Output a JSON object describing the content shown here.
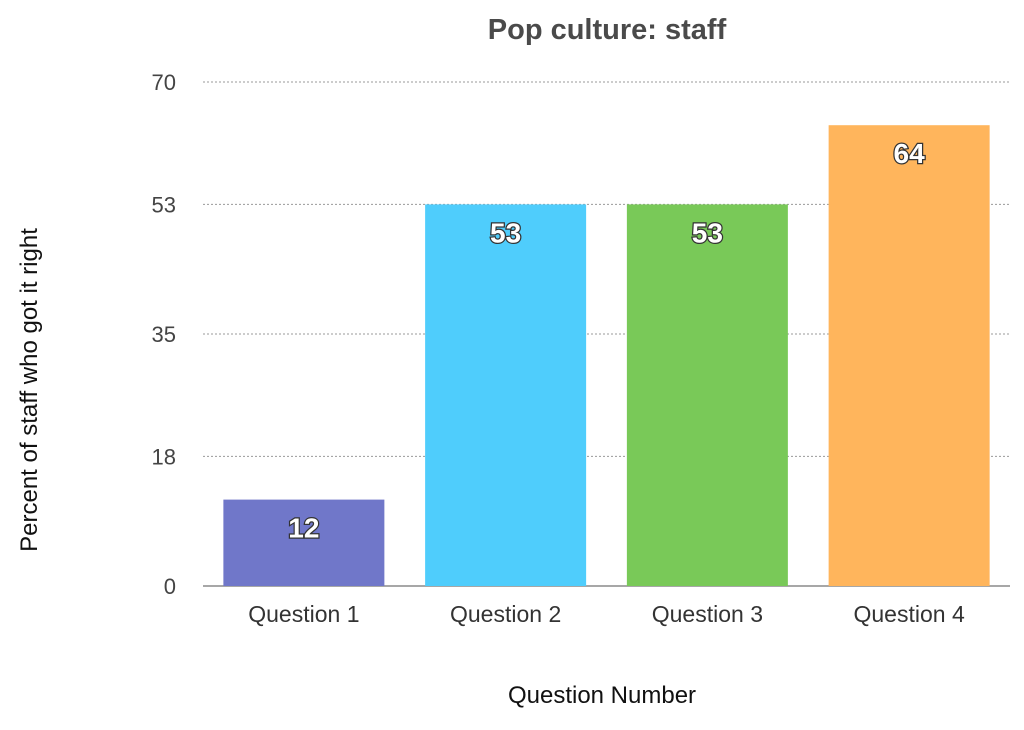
{
  "chart_data": {
    "type": "bar",
    "title": "Pop culture: staff",
    "xlabel": "Question Number",
    "ylabel": "Percent of staff who got it right",
    "categories": [
      "Question 1",
      "Question 2",
      "Question 3",
      "Question 4"
    ],
    "values": [
      12,
      53,
      53,
      64
    ],
    "data_labels": [
      "12",
      "53",
      "53",
      "64"
    ],
    "colors": [
      "#7077c9",
      "#4fcdfc",
      "#79c958",
      "#ffb55c"
    ],
    "ylim": [
      0,
      70
    ],
    "yticks": [
      0,
      18,
      35,
      53,
      70
    ],
    "ytick_labels": [
      "0",
      "18",
      "35",
      "53",
      "70"
    ],
    "grid": true,
    "grid_style": "dashed",
    "legend": "none"
  }
}
